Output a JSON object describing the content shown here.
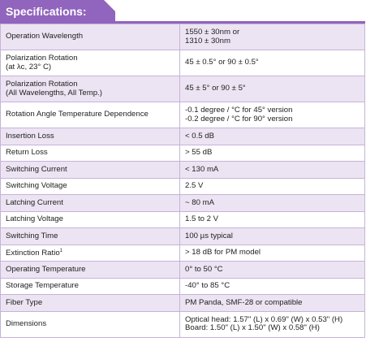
{
  "header": {
    "title": "Specifications:"
  },
  "table": {
    "rows": [
      {
        "param": [
          "Operation Wavelength"
        ],
        "spec": [
          "1550 ± 30nm or",
          "1310 ± 30nm"
        ]
      },
      {
        "param": [
          "Polarization Rotation",
          "(at λc, 23° C)"
        ],
        "spec": [
          "45 ± 0.5° or 90 ± 0.5°"
        ]
      },
      {
        "param": [
          "Polarization Rotation",
          "(All Wavelengths, All Temp.)"
        ],
        "spec": [
          "45 ± 5° or 90 ± 5°"
        ]
      },
      {
        "param": [
          "Rotation Angle Temperature Dependence"
        ],
        "spec": [
          "-0.1 degree / °C for 45° version",
          "-0.2 degree / °C for 90° version"
        ]
      },
      {
        "param": [
          "Insertion Loss"
        ],
        "spec": [
          "< 0.5 dB"
        ]
      },
      {
        "param": [
          "Return Loss"
        ],
        "spec": [
          "> 55 dB"
        ]
      },
      {
        "param": [
          "Switching Current"
        ],
        "spec": [
          "< 130 mA"
        ]
      },
      {
        "param": [
          "Switching Voltage"
        ],
        "spec": [
          "2.5 V"
        ]
      },
      {
        "param": [
          "Latching Current"
        ],
        "spec": [
          "~ 80 mA"
        ]
      },
      {
        "param": [
          "Latching Voltage"
        ],
        "spec": [
          "1.5 to 2 V"
        ]
      },
      {
        "param": [
          "Switching Time"
        ],
        "spec": [
          "100 µs typical"
        ]
      },
      {
        "param": [
          "Extinction Ratio"
        ],
        "note": "1",
        "spec": [
          "> 18 dB for PM model"
        ]
      },
      {
        "param": [
          "Operating Temperature"
        ],
        "spec": [
          "0° to 50 °C"
        ]
      },
      {
        "param": [
          "Storage Temperature"
        ],
        "spec": [
          "-40° to 85 °C"
        ]
      },
      {
        "param": [
          "Fiber Type"
        ],
        "spec": [
          "PM Panda, SMF-28 or compatible"
        ]
      },
      {
        "param": [
          "Dimensions"
        ],
        "spec": [
          "Optical head: 1.57\" (L) x 0.69\" (W) x 0.53\" (H)",
          "Board: 1.50\" (L) x 1.50\" (W) x 0.58\" (H)"
        ]
      }
    ]
  }
}
